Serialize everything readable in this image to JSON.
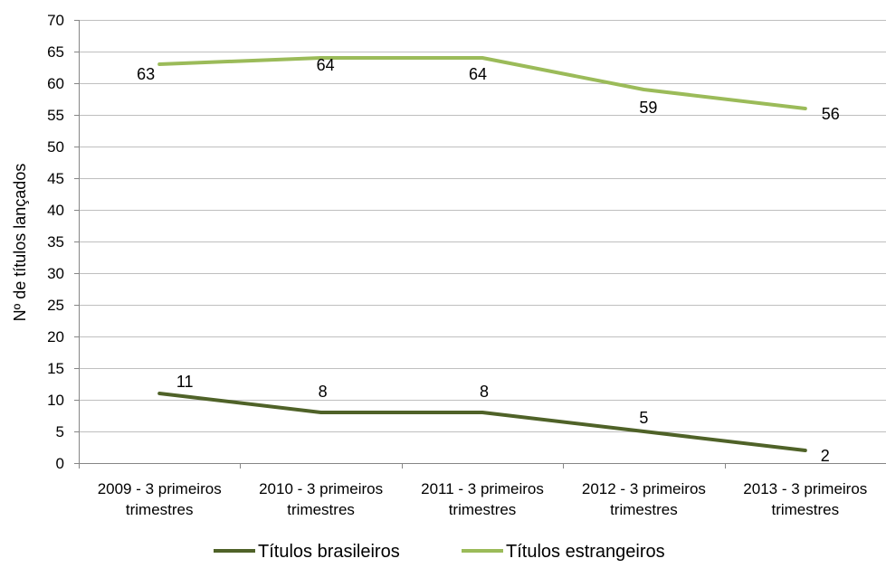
{
  "chart_data": {
    "type": "line",
    "categories": [
      [
        "2009 - 3 primeiros",
        "trimestres"
      ],
      [
        "2010 - 3 primeiros",
        "trimestres"
      ],
      [
        "2011 - 3 primeiros",
        "trimestres"
      ],
      [
        "2012 - 3 primeiros",
        "trimestres"
      ],
      [
        "2013 - 3 primeiros",
        "trimestres"
      ]
    ],
    "series": [
      {
        "name": "Títulos brasileiros",
        "values": [
          11,
          8,
          8,
          5,
          2
        ],
        "color": "#4f6228"
      },
      {
        "name": "Títulos estrangeiros",
        "values": [
          63,
          64,
          64,
          59,
          56
        ],
        "color": "#9bbb59"
      }
    ],
    "title": "",
    "xlabel": "",
    "ylabel": "Nº de títulos lançados",
    "ylim": [
      0,
      70
    ],
    "yticks": [
      0,
      5,
      10,
      15,
      20,
      25,
      30,
      35,
      40,
      45,
      50,
      55,
      60,
      65,
      70
    ],
    "grid": true,
    "legend": "bottom"
  }
}
